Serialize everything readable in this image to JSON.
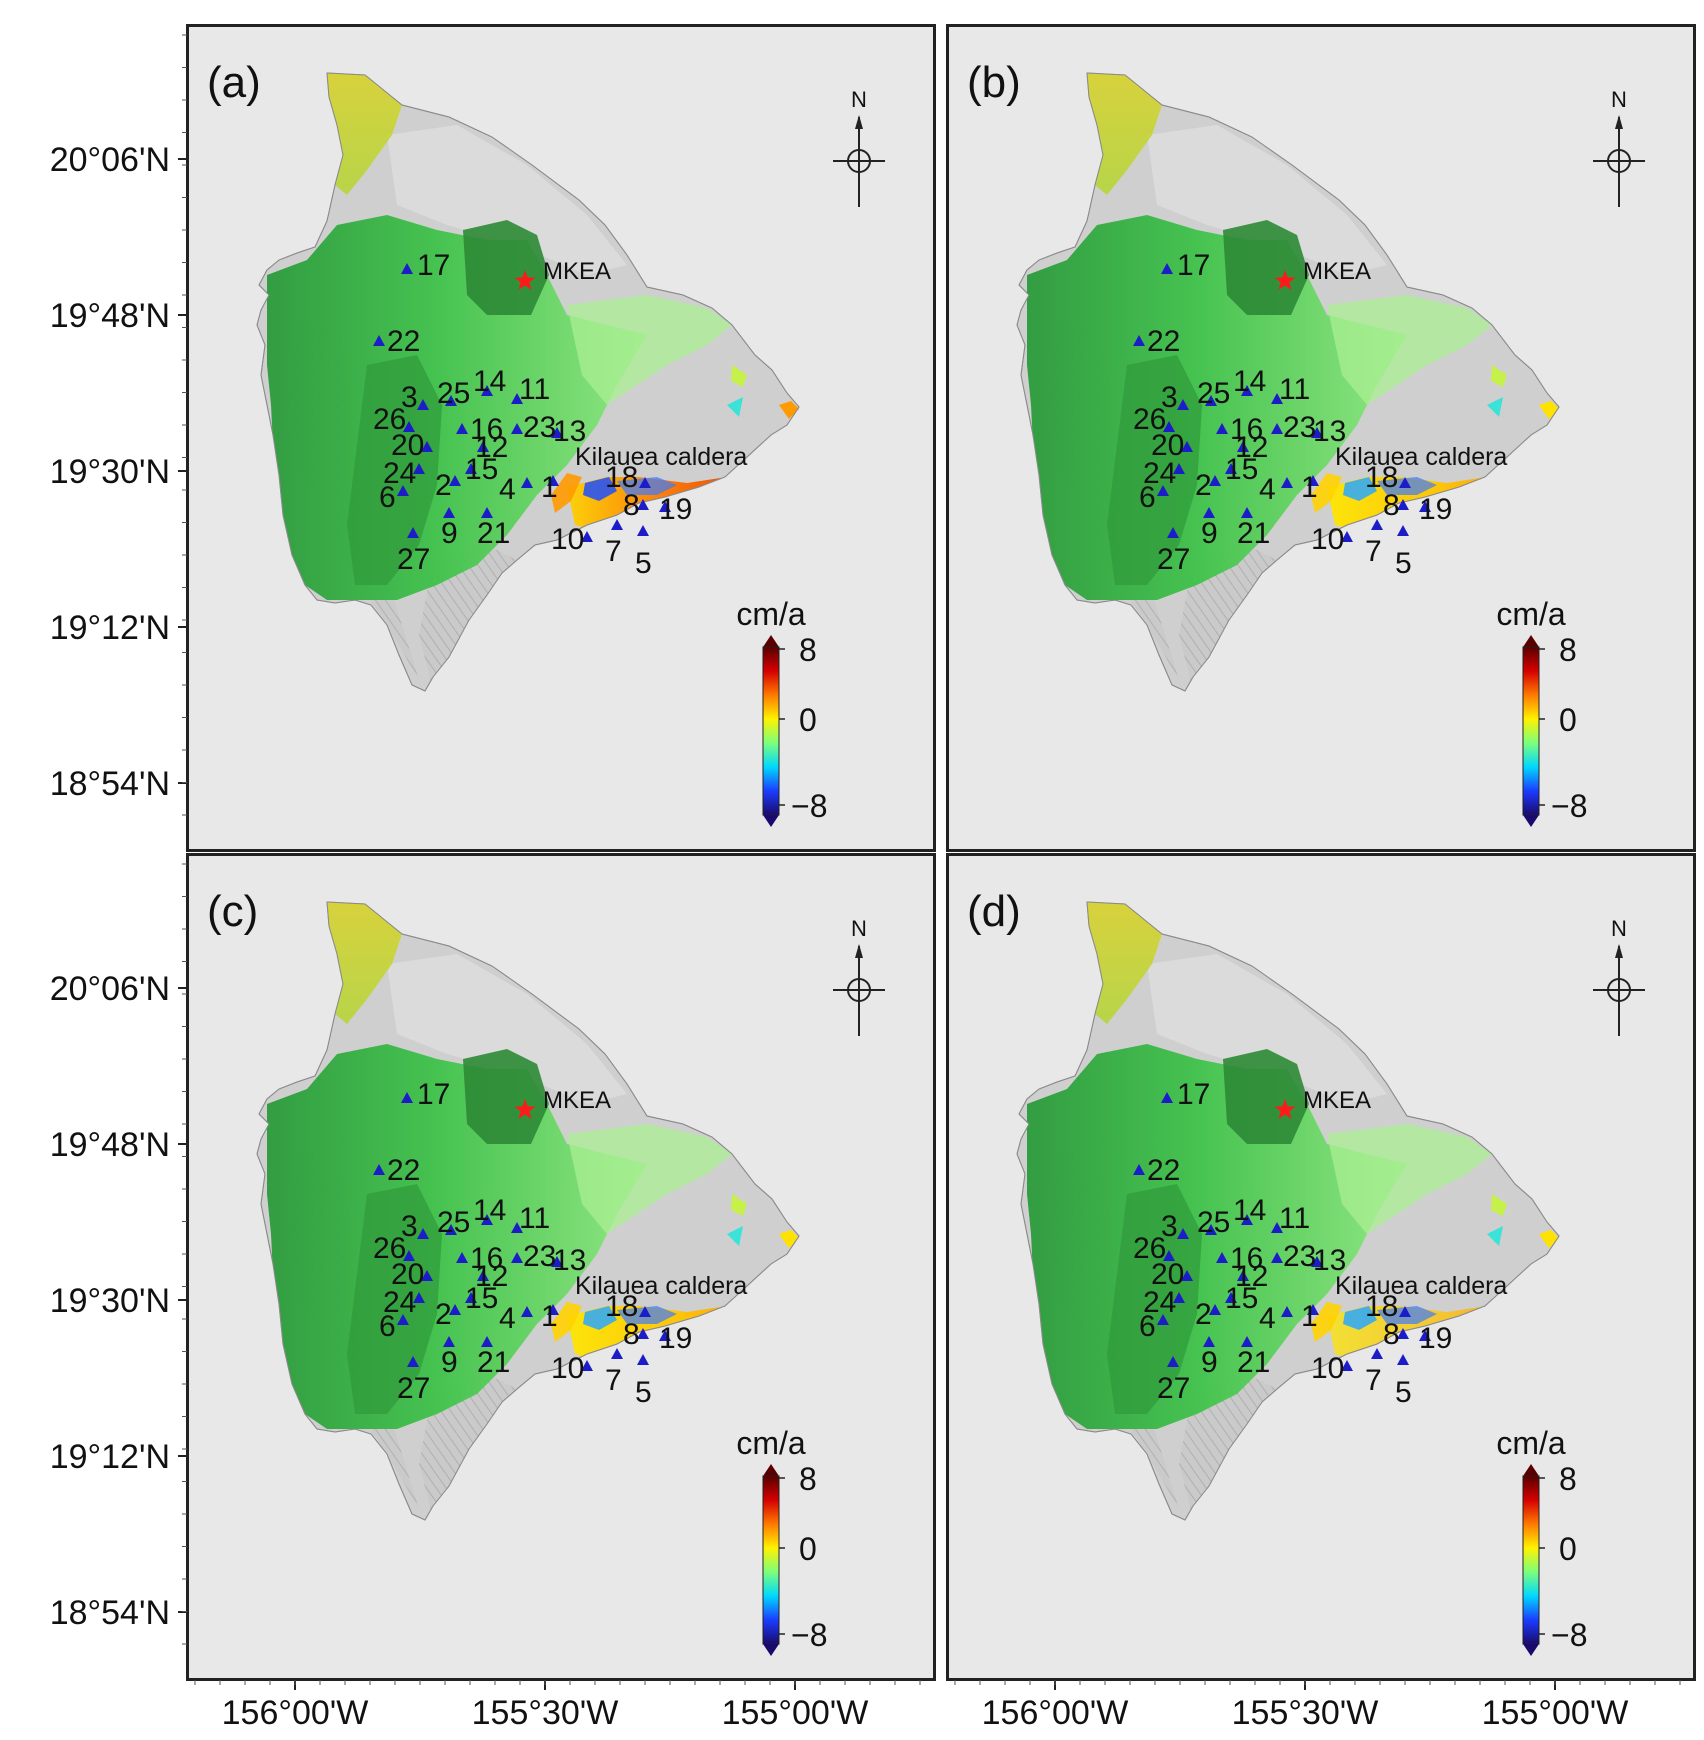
{
  "figure": {
    "panels": [
      {
        "label": "(a)",
        "variant": "a"
      },
      {
        "label": "(b)",
        "variant": "b"
      },
      {
        "label": "(c)",
        "variant": "c"
      },
      {
        "label": "(d)",
        "variant": "d"
      }
    ],
    "lat_ticks": [
      "20°06'N",
      "19°48'N",
      "19°30'N",
      "19°12'N",
      "18°54'N"
    ],
    "lon_ticks": [
      "156°00'W",
      "155°30'W",
      "155°00'W"
    ],
    "north_label": "N",
    "reference_station": "MKEA",
    "caldera_label": "Kilauea caldera",
    "stations": [
      "1",
      "2",
      "3",
      "4",
      "5",
      "6",
      "7",
      "8",
      "9",
      "10",
      "11",
      "12",
      "13",
      "14",
      "15",
      "16",
      "17",
      "18",
      "19",
      "20",
      "21",
      "22",
      "23",
      "24",
      "25",
      "26",
      "27"
    ],
    "colorbar": {
      "unit": "cm/a",
      "ticks": [
        "8",
        "0",
        "−8"
      ],
      "range": [
        -8,
        8
      ],
      "colormap": [
        "#1a0a6e",
        "#1b3cff",
        "#00d8ff",
        "#7dff7a",
        "#fff200",
        "#ff7a00",
        "#d40000",
        "#5a0000"
      ]
    },
    "colors": {
      "station_marker": "#1c1cc8",
      "reference_star": "#ff1a1a",
      "background": "#e8e8e8",
      "terrain": "#cfcfcf"
    }
  }
}
